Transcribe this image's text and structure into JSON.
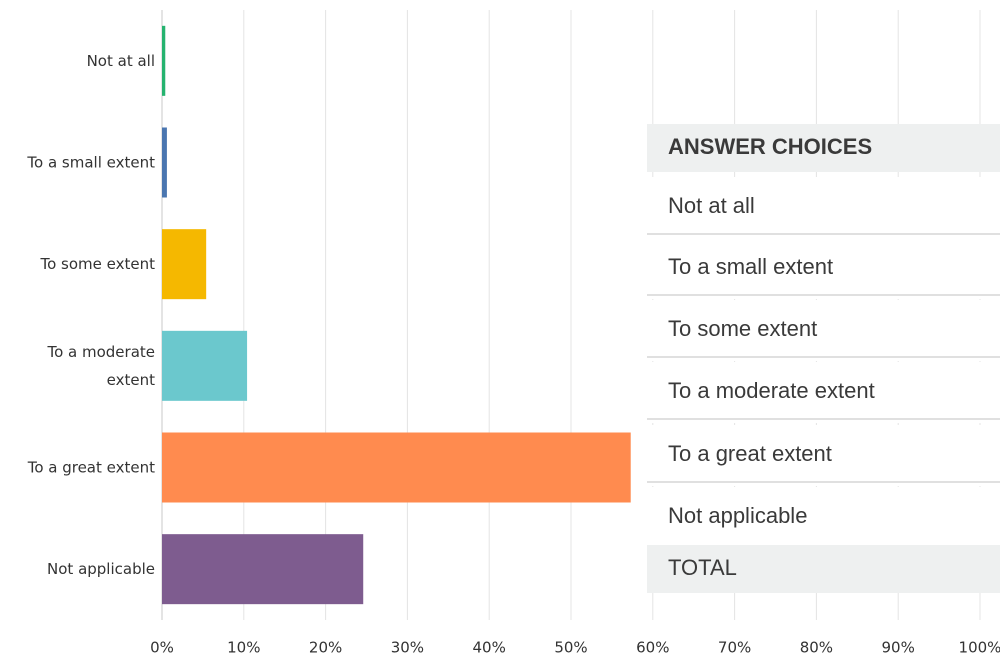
{
  "chart_data": {
    "type": "bar",
    "orientation": "horizontal",
    "categories": [
      "Not at all",
      "To a small extent",
      "To some extent",
      "To a moderate extent",
      "To a great extent",
      "Not applicable"
    ],
    "values": [
      0.4,
      0.6,
      5.4,
      10.4,
      57.3,
      24.6
    ],
    "colors": [
      "#25b36f",
      "#4a76b0",
      "#f5b800",
      "#6bc8cd",
      "#ff8b4f",
      "#7e5c8f"
    ],
    "xlim": [
      0,
      100
    ],
    "xticks": [
      {
        "value": 0,
        "label": "0%"
      },
      {
        "value": 10,
        "label": "10%"
      },
      {
        "value": 20,
        "label": "20%"
      },
      {
        "value": 30,
        "label": "30%"
      },
      {
        "value": 40,
        "label": "40%"
      },
      {
        "value": 50,
        "label": "50%"
      },
      {
        "value": 60,
        "label": "60%"
      },
      {
        "value": 70,
        "label": "70%"
      },
      {
        "value": 80,
        "label": "80%"
      },
      {
        "value": 90,
        "label": "90%"
      },
      {
        "value": 100,
        "label": "100%"
      }
    ],
    "grid": true,
    "table": {
      "header": "ANSWER CHOICES",
      "total": "TOTAL"
    }
  }
}
